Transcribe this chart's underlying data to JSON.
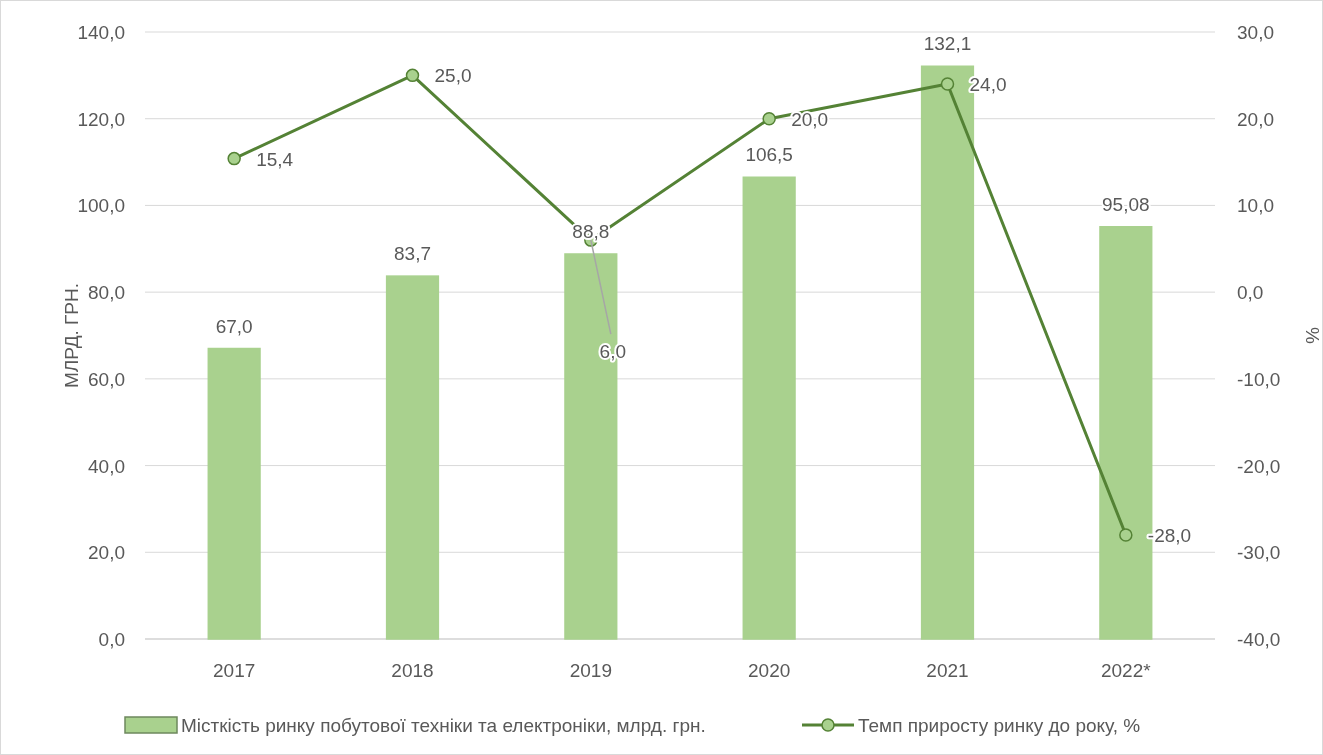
{
  "chart_data": {
    "type": "bar",
    "ylabel": "МЛРД. ГРН.",
    "y2label": "%",
    "categories": [
      "2017",
      "2018",
      "2019",
      "2020",
      "2021",
      "2022*"
    ],
    "series": [
      {
        "name": "Місткість ринку побутової техніки та електроніки, млрд. грн.",
        "color": "#a9d18e",
        "values": [
          67.0,
          83.7,
          88.8,
          106.5,
          132.1,
          95.08
        ],
        "value_labels": [
          "67,0",
          "83,7",
          "88,8",
          "106,5",
          "132,1",
          "95,08"
        ]
      },
      {
        "type": "line",
        "axis": "y2",
        "name": "Темп приросту ринку до року, %",
        "color": "#548235",
        "marker": "circle",
        "values": [
          15.4,
          25.0,
          6.0,
          20.0,
          24.0,
          -28.0
        ],
        "value_labels": [
          "15,4",
          "25,0",
          "6,0",
          "20,0",
          "24,0",
          "-28,0"
        ]
      }
    ],
    "ylim": [
      0,
      140
    ],
    "yticks": [
      {
        "value": 0,
        "label": "0,0"
      },
      {
        "value": 20,
        "label": "20,0"
      },
      {
        "value": 40,
        "label": "40,0"
      },
      {
        "value": 60,
        "label": "60,0"
      },
      {
        "value": 80,
        "label": "80,0"
      },
      {
        "value": 100,
        "label": "100,0"
      },
      {
        "value": 120,
        "label": "120,0"
      },
      {
        "value": 140,
        "label": "140,0"
      }
    ],
    "y2lim": [
      -40,
      30
    ],
    "y2ticks": [
      {
        "value": -40,
        "label": "-40,0"
      },
      {
        "value": -30,
        "label": "-30,0"
      },
      {
        "value": -20,
        "label": "-20,0"
      },
      {
        "value": -10,
        "label": "-10,0"
      },
      {
        "value": 0,
        "label": "0,0"
      },
      {
        "value": 10,
        "label": "10,0"
      },
      {
        "value": 20,
        "label": "20,0"
      },
      {
        "value": 30,
        "label": "30,0"
      }
    ],
    "grid": "y",
    "legend": "bottom"
  }
}
